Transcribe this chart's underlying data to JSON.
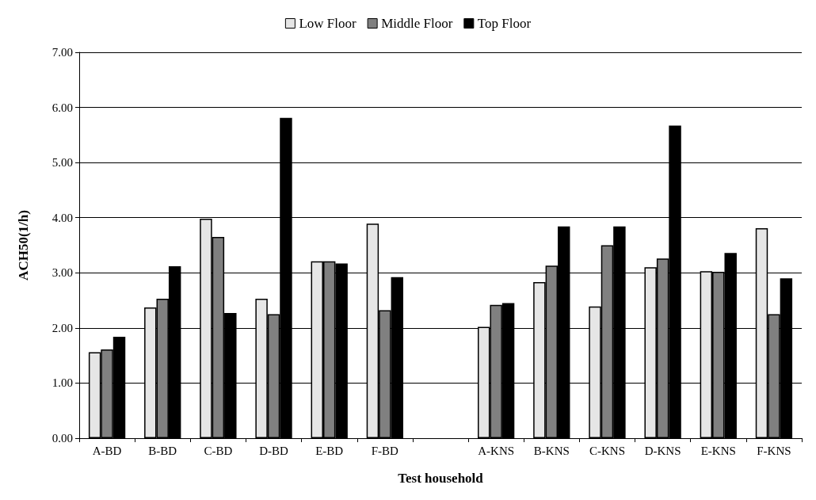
{
  "chart_data": {
    "type": "bar",
    "xlabel": "Test household",
    "ylabel": "ACH50(1/h)",
    "categories": [
      "A-BD",
      "B-BD",
      "C-BD",
      "D-BD",
      "E-BD",
      "F-BD",
      null,
      "A-KNS",
      "B-KNS",
      "C-KNS",
      "D-KNS",
      "E-KNS",
      "F-KNS"
    ],
    "series": [
      {
        "name": "Low Floor",
        "color": "#e6e6e6",
        "values": [
          1.56,
          2.37,
          3.98,
          2.53,
          3.21,
          3.89,
          null,
          2.02,
          2.83,
          2.39,
          3.1,
          3.03,
          3.81
        ]
      },
      {
        "name": "Middle Floor",
        "color": "#808080",
        "values": [
          1.61,
          2.53,
          3.65,
          2.25,
          3.21,
          2.32,
          null,
          2.42,
          3.13,
          3.5,
          3.26,
          3.02,
          2.25
        ]
      },
      {
        "name": "Top Floor",
        "color": "#000000",
        "values": [
          1.84,
          3.12,
          2.27,
          5.81,
          3.17,
          2.92,
          null,
          2.45,
          3.84,
          3.84,
          5.67,
          3.36,
          2.9
        ]
      }
    ],
    "ylim": [
      0,
      7
    ],
    "yticks": [
      {
        "value": 0,
        "label": "0.00"
      },
      {
        "value": 1,
        "label": "1.00"
      },
      {
        "value": 2,
        "label": "2.00"
      },
      {
        "value": 3,
        "label": "3.00"
      },
      {
        "value": 4,
        "label": "4.00"
      },
      {
        "value": 5,
        "label": "5.00"
      },
      {
        "value": 6,
        "label": "6.00"
      },
      {
        "value": 7,
        "label": "7.00"
      }
    ],
    "grid": "y",
    "legend": "top"
  }
}
